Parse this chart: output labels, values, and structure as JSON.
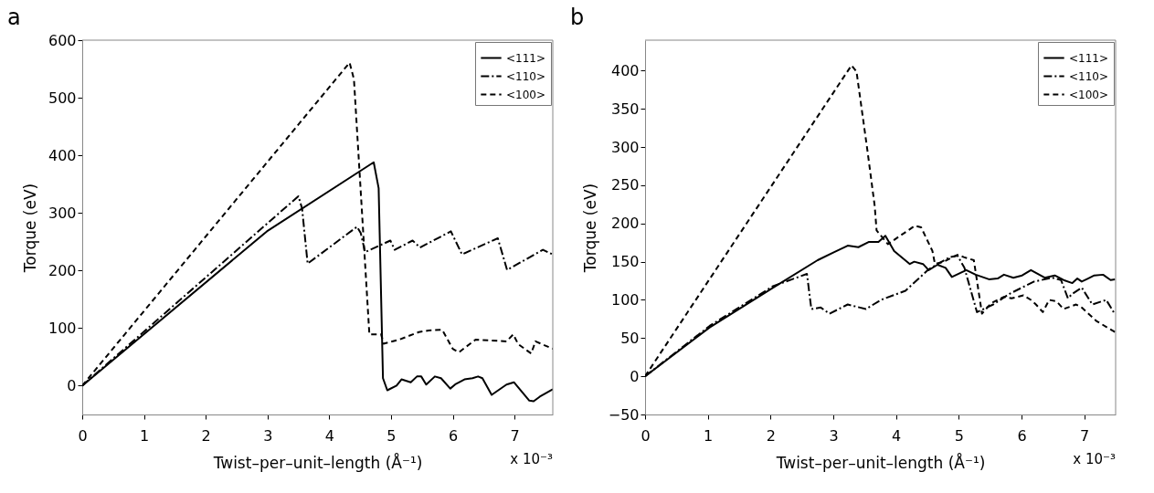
{
  "chart_data": [
    {
      "type": "line",
      "title": "a",
      "xlabel": "Twist–per–unit–length (Å⁻¹)",
      "ylabel": "Torque (eV)",
      "annotations": [
        "x 10⁻³"
      ],
      "xlim": [
        0,
        7.62
      ],
      "xticks": [
        0,
        1,
        2,
        3,
        4,
        5,
        6,
        7
      ],
      "ylim": [
        -50,
        600
      ],
      "yticks": [
        0,
        100,
        200,
        300,
        400,
        500,
        600
      ],
      "grid": false,
      "legend": "top right",
      "marker": "none",
      "series": [
        {
          "name": "<111>",
          "color": "#000000",
          "line_style": "solid",
          "x": [
            0,
            2.99,
            4.72,
            4.8,
            4.87,
            4.94,
            5.09,
            5.17,
            5.32,
            5.42,
            5.49,
            5.57,
            5.71,
            5.81,
            5.96,
            6.05,
            6.19,
            6.32,
            6.41,
            6.48,
            6.63,
            6.87,
            6.99,
            7.24,
            7.31,
            7.41,
            7.62
          ],
          "values": [
            0,
            268,
            388,
            343,
            13,
            -8,
            0,
            11,
            6,
            16,
            16,
            2,
            16,
            13,
            -5,
            3,
            11,
            13,
            16,
            13,
            -16,
            2,
            6,
            -26,
            -27,
            -19,
            -6
          ]
        },
        {
          "name": "<110>",
          "color": "#000000",
          "line_style": "dashdot",
          "x": [
            0,
            3.5,
            3.56,
            3.65,
            4.45,
            4.51,
            4.58,
            4.99,
            5.06,
            5.35,
            5.47,
            5.97,
            6.15,
            6.73,
            6.88,
            7.46,
            7.62
          ],
          "values": [
            0,
            329,
            308,
            212,
            276,
            265,
            232,
            252,
            236,
            252,
            240,
            268,
            228,
            256,
            201,
            236,
            228
          ]
        },
        {
          "name": "<100>",
          "color": "#000000",
          "line_style": "dashed",
          "x": [
            0,
            4.33,
            4.4,
            4.65,
            4.84,
            4.88,
            5.13,
            5.45,
            5.61,
            5.83,
            6.0,
            6.1,
            6.37,
            6.87,
            6.98,
            7.06,
            7.27,
            7.34,
            7.62
          ],
          "values": [
            0,
            561,
            532,
            89,
            89,
            73,
            80,
            93,
            96,
            97,
            64,
            58,
            80,
            77,
            89,
            72,
            56,
            77,
            64
          ]
        }
      ]
    },
    {
      "type": "line",
      "title": "b",
      "xlabel": "Twist–per–unit–length (Å⁻¹)",
      "ylabel": "Torque (eV)",
      "annotations": [
        "x 10⁻³"
      ],
      "xlim": [
        0,
        7.5
      ],
      "xticks": [
        0,
        1,
        2,
        3,
        4,
        5,
        6,
        7
      ],
      "ylim": [
        -50,
        440
      ],
      "yticks": [
        -50,
        0,
        50,
        100,
        150,
        200,
        250,
        300,
        350,
        400
      ],
      "grid": false,
      "legend": "top right",
      "marker": "none",
      "series": [
        {
          "name": "<111>",
          "color": "#000000",
          "line_style": "solid",
          "x": [
            0,
            1.03,
            2.04,
            2.75,
            3.0,
            3.23,
            3.4,
            3.57,
            3.69,
            3.72,
            3.83,
            3.97,
            4.22,
            4.29,
            4.43,
            4.52,
            4.66,
            4.79,
            4.89,
            5.12,
            5.27,
            5.48,
            5.62,
            5.72,
            5.87,
            6.01,
            6.15,
            6.37,
            6.53,
            6.67,
            6.81,
            6.89,
            6.96,
            7.06,
            7.16,
            7.3,
            7.42,
            7.49
          ],
          "values": [
            0,
            64,
            116,
            152,
            162,
            171,
            169,
            176,
            176,
            176,
            184,
            164,
            147,
            150,
            147,
            139,
            146,
            142,
            130,
            139,
            133,
            127,
            128,
            133,
            129,
            132,
            139,
            129,
            132,
            126,
            122,
            128,
            124,
            128,
            132,
            133,
            126,
            127
          ]
        },
        {
          "name": "<110>",
          "color": "#000000",
          "line_style": "dashdot",
          "x": [
            0,
            1.03,
            2.04,
            2.58,
            2.65,
            2.8,
            2.94,
            3.23,
            3.52,
            3.76,
            4.15,
            4.52,
            4.73,
            4.86,
            4.98,
            5.09,
            5.29,
            5.55,
            5.81,
            6.2,
            6.49,
            6.63,
            6.74,
            6.81,
            6.96,
            7.13,
            7.35,
            7.49
          ],
          "values": [
            0,
            66,
            118,
            134,
            88,
            90,
            82,
            94,
            88,
            100,
            112,
            140,
            150,
            156,
            158,
            142,
            84,
            94,
            108,
            124,
            129,
            126,
            102,
            108,
            116,
            94,
            100,
            81
          ]
        },
        {
          "name": "<100>",
          "color": "#000000",
          "line_style": "dashed",
          "x": [
            0,
            3.29,
            3.37,
            3.54,
            3.66,
            3.69,
            3.87,
            4.3,
            4.4,
            4.58,
            4.62,
            4.76,
            4.98,
            5.08,
            5.24,
            5.37,
            5.52,
            5.72,
            5.84,
            6.03,
            6.15,
            6.23,
            6.34,
            6.44,
            6.56,
            6.67,
            6.87,
            6.96,
            7.2,
            7.49
          ],
          "values": [
            0,
            407,
            399,
            298,
            223,
            191,
            173,
            197,
            195,
            164,
            147,
            150,
            159,
            156,
            152,
            82,
            96,
            104,
            102,
            106,
            100,
            94,
            84,
            100,
            98,
            88,
            94,
            90,
            72,
            58
          ]
        }
      ]
    }
  ]
}
